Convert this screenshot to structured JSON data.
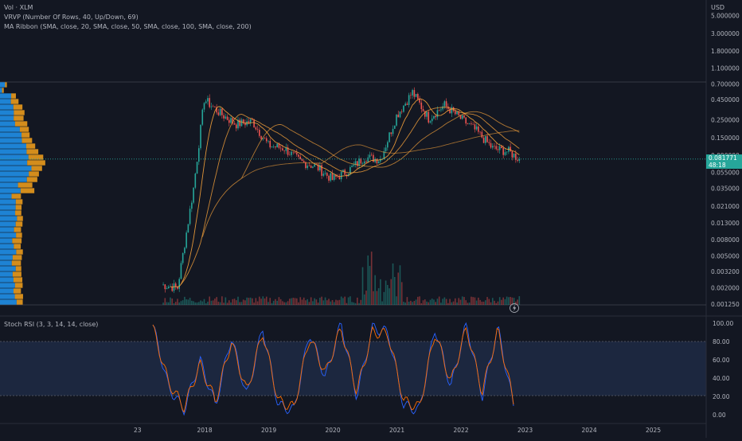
{
  "legend": {
    "main": "Vol · XLM",
    "vrvp": "VRVP (Number Of Rows, 40, Up/Down, 69)",
    "ribbon": "MA Ribbon (SMA, close, 20, SMA, close, 50, SMA, close, 100, SMA, close, 200)",
    "stoch": "Stoch RSI (3, 3, 14, 14, close)"
  },
  "price_axis": {
    "currency": "USD",
    "labels": [
      "5.000000",
      "3.000000",
      "1.800000",
      "1.100000",
      "0.700000",
      "0.450000",
      "0.250000",
      "0.150000",
      "0.090000",
      "0.055000",
      "0.035000",
      "0.021000",
      "0.013000",
      "0.008000",
      "0.005000",
      "0.003200",
      "0.002000",
      "0.001250"
    ],
    "last_price": "0.081771",
    "last_change": "48:18"
  },
  "stoch_axis": {
    "labels": [
      "100.00",
      "80.00",
      "60.00",
      "40.00",
      "20.00",
      "0.00"
    ]
  },
  "time_axis": {
    "labels": [
      "23",
      "2018",
      "2019",
      "2020",
      "2021",
      "2022",
      "2023",
      "2024",
      "2025"
    ]
  },
  "colors": {
    "background": "#131722",
    "up": "#26a69a",
    "down": "#ef5350",
    "ma_ribbon": "#f7a23b",
    "vrvp_up": "#2196f3",
    "vrvp_down": "#f7a21b",
    "stoch_k": "#2962ff",
    "stoch_d": "#ff6d00",
    "grid": "#1e222d"
  },
  "chart_data": {
    "type": "line",
    "scale": "log",
    "ylim": [
      0.001,
      6.5
    ],
    "x": [
      "2017-05",
      "2017-08",
      "2017-11",
      "2018-01",
      "2018-04",
      "2018-07",
      "2018-10",
      "2019-01",
      "2019-04",
      "2019-07",
      "2019-10",
      "2020-01",
      "2020-04",
      "2020-07",
      "2020-10",
      "2021-01",
      "2021-04",
      "2021-07",
      "2021-10",
      "2022-01",
      "2022-04",
      "2022-07",
      "2022-10",
      "2022-12"
    ],
    "series": [
      {
        "values": [
          0.0022,
          0.002,
          0.035,
          0.45,
          0.3,
          0.22,
          0.24,
          0.12,
          0.11,
          0.075,
          0.065,
          0.045,
          0.058,
          0.085,
          0.08,
          0.28,
          0.55,
          0.26,
          0.38,
          0.26,
          0.18,
          0.11,
          0.1,
          0.081
        ]
      }
    ],
    "stoch_rsi": {
      "ylim": [
        0,
        100
      ],
      "k": [
        98,
        30,
        5,
        60,
        10,
        85,
        20,
        95,
        10,
        5,
        90,
        40,
        100,
        20,
        95,
        90,
        10,
        5,
        95,
        30,
        100,
        20,
        95,
        10
      ],
      "d": [
        95,
        35,
        8,
        55,
        15,
        80,
        25,
        90,
        15,
        8,
        85,
        45,
        95,
        25,
        90,
        88,
        15,
        8,
        90,
        35,
        95,
        25,
        92,
        15
      ]
    }
  }
}
